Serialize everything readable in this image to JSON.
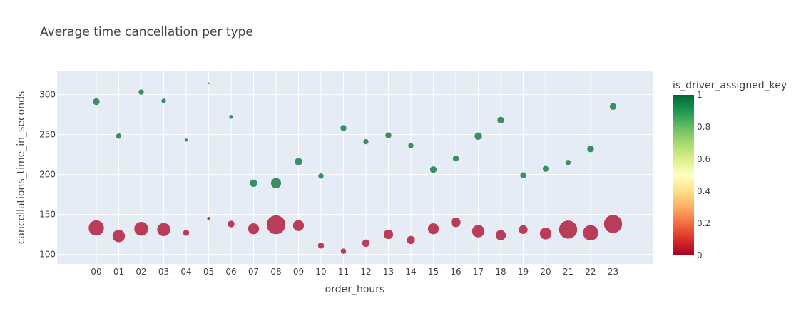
{
  "chart_data": {
    "type": "scatter",
    "title": "Average time cancellation per type",
    "xlabel": "order_hours",
    "ylabel": "cancellations_time_in_seconds",
    "categories": [
      "00",
      "01",
      "02",
      "03",
      "04",
      "05",
      "06",
      "07",
      "08",
      "09",
      "10",
      "11",
      "12",
      "13",
      "14",
      "15",
      "16",
      "17",
      "18",
      "19",
      "20",
      "21",
      "22",
      "23"
    ],
    "ylim": [
      88,
      329
    ],
    "yticks": [
      100,
      150,
      200,
      250,
      300
    ],
    "grid": true,
    "legend": "none",
    "colorbar": {
      "title": "is_driver_assigned_key",
      "range": [
        0,
        1
      ],
      "ticks": [
        "0",
        "0.2",
        "0.4",
        "0.6",
        "0.8",
        "1"
      ],
      "colorscale": [
        "#a50026",
        "#d73027",
        "#f46d43",
        "#fdae61",
        "#fee08b",
        "#ffffbf",
        "#d9ef8b",
        "#a6d96a",
        "#66bd63",
        "#1a9850",
        "#006837"
      ],
      "position": "right"
    },
    "marker_colors": {
      "assigned_1": "#1e7b4a",
      "assigned_0": "#b01f3d"
    },
    "series": [
      {
        "key": 1,
        "y": [
          291,
          248,
          303,
          292,
          243,
          314,
          272,
          189,
          189,
          216,
          198,
          258,
          241,
          249,
          236,
          206,
          220,
          248,
          268,
          199,
          207,
          215,
          232,
          285
        ],
        "size": [
          10,
          8,
          8,
          7,
          5,
          3,
          6,
          11,
          15,
          11,
          8,
          9,
          8,
          9,
          8,
          10,
          9,
          11,
          10,
          9,
          9,
          8,
          10,
          10
        ]
      },
      {
        "key": 0,
        "y": [
          133,
          123,
          132,
          131,
          127,
          145,
          138,
          132,
          137,
          136,
          111,
          104,
          114,
          125,
          118,
          132,
          140,
          129,
          124,
          131,
          126,
          131,
          127,
          138
        ],
        "size": [
          22,
          18,
          20,
          19,
          9,
          5,
          10,
          16,
          27,
          16,
          9,
          8,
          11,
          14,
          12,
          16,
          14,
          18,
          15,
          13,
          17,
          26,
          22,
          26
        ]
      }
    ]
  }
}
